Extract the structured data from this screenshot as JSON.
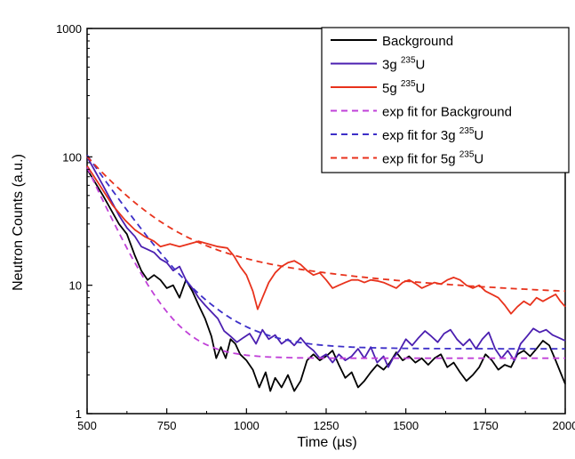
{
  "chart_data": {
    "type": "line",
    "xlabel": "Time (µs)",
    "ylabel": "Neutron Counts (a.u.)",
    "xlim": [
      500,
      2000
    ],
    "ylim": [
      1,
      1000
    ],
    "yscale": "log",
    "grid": false,
    "legend_position": "top-right",
    "x_ticks": [
      500,
      750,
      1000,
      1250,
      1500,
      1750,
      2000
    ],
    "x_tick_labels": [
      "500",
      "750",
      "1000",
      "1250",
      "1500",
      "1750",
      "2000"
    ],
    "y_ticks": [
      1,
      10,
      100,
      1000
    ],
    "y_tick_labels": [
      "1",
      "10",
      "100",
      "1000"
    ],
    "series": [
      {
        "name": "Background",
        "legend_text": "Background",
        "legend_sup": "",
        "legend_suffix": "",
        "color": "#000000",
        "style": "solid",
        "points": [
          [
            500,
            80
          ],
          [
            550,
            50
          ],
          [
            600,
            30
          ],
          [
            625,
            25
          ],
          [
            650,
            17
          ],
          [
            670,
            13
          ],
          [
            690,
            11
          ],
          [
            710,
            12
          ],
          [
            730,
            11
          ],
          [
            750,
            9.5
          ],
          [
            770,
            10
          ],
          [
            790,
            8
          ],
          [
            810,
            11
          ],
          [
            830,
            9
          ],
          [
            850,
            7
          ],
          [
            870,
            5.5
          ],
          [
            890,
            4
          ],
          [
            905,
            2.7
          ],
          [
            920,
            3.3
          ],
          [
            935,
            2.7
          ],
          [
            950,
            3.8
          ],
          [
            965,
            3.5
          ],
          [
            980,
            2.9
          ],
          [
            1000,
            2.6
          ],
          [
            1020,
            2.2
          ],
          [
            1040,
            1.6
          ],
          [
            1060,
            2.1
          ],
          [
            1075,
            1.5
          ],
          [
            1090,
            1.9
          ],
          [
            1110,
            1.6
          ],
          [
            1130,
            2.0
          ],
          [
            1150,
            1.5
          ],
          [
            1170,
            1.8
          ],
          [
            1190,
            2.6
          ],
          [
            1210,
            2.9
          ],
          [
            1230,
            2.6
          ],
          [
            1250,
            2.8
          ],
          [
            1270,
            3.1
          ],
          [
            1290,
            2.4
          ],
          [
            1310,
            1.9
          ],
          [
            1330,
            2.1
          ],
          [
            1350,
            1.6
          ],
          [
            1370,
            1.8
          ],
          [
            1390,
            2.1
          ],
          [
            1410,
            2.4
          ],
          [
            1430,
            2.2
          ],
          [
            1450,
            2.5
          ],
          [
            1470,
            3.0
          ],
          [
            1490,
            2.6
          ],
          [
            1510,
            2.8
          ],
          [
            1530,
            2.5
          ],
          [
            1550,
            2.7
          ],
          [
            1570,
            2.4
          ],
          [
            1590,
            2.7
          ],
          [
            1610,
            2.9
          ],
          [
            1630,
            2.3
          ],
          [
            1650,
            2.5
          ],
          [
            1670,
            2.1
          ],
          [
            1690,
            1.8
          ],
          [
            1710,
            2.0
          ],
          [
            1730,
            2.3
          ],
          [
            1750,
            2.9
          ],
          [
            1770,
            2.6
          ],
          [
            1790,
            2.2
          ],
          [
            1810,
            2.4
          ],
          [
            1830,
            2.3
          ],
          [
            1850,
            2.9
          ],
          [
            1870,
            3.1
          ],
          [
            1890,
            2.8
          ],
          [
            1910,
            3.2
          ],
          [
            1930,
            3.7
          ],
          [
            1950,
            3.4
          ],
          [
            1970,
            2.6
          ],
          [
            1985,
            2.1
          ],
          [
            2000,
            1.7
          ]
        ]
      },
      {
        "name": "3g 235U",
        "legend_text": "3g ",
        "legend_sup": "235",
        "legend_suffix": "U",
        "color": "#4b1fb0",
        "style": "solid",
        "points": [
          [
            500,
            100
          ],
          [
            550,
            60
          ],
          [
            600,
            35
          ],
          [
            625,
            28
          ],
          [
            650,
            24
          ],
          [
            670,
            20
          ],
          [
            690,
            19
          ],
          [
            710,
            18
          ],
          [
            730,
            16
          ],
          [
            750,
            15
          ],
          [
            770,
            13
          ],
          [
            790,
            14
          ],
          [
            810,
            11
          ],
          [
            830,
            9.5
          ],
          [
            850,
            8
          ],
          [
            870,
            7
          ],
          [
            890,
            6.2
          ],
          [
            910,
            5.5
          ],
          [
            930,
            4.4
          ],
          [
            950,
            4.0
          ],
          [
            970,
            3.6
          ],
          [
            990,
            3.9
          ],
          [
            1010,
            4.2
          ],
          [
            1030,
            3.5
          ],
          [
            1050,
            4.5
          ],
          [
            1070,
            3.8
          ],
          [
            1090,
            4.1
          ],
          [
            1110,
            3.5
          ],
          [
            1130,
            3.8
          ],
          [
            1150,
            3.4
          ],
          [
            1170,
            3.9
          ],
          [
            1190,
            3.4
          ],
          [
            1210,
            3.1
          ],
          [
            1230,
            2.7
          ],
          [
            1250,
            2.9
          ],
          [
            1270,
            2.5
          ],
          [
            1290,
            2.9
          ],
          [
            1310,
            2.6
          ],
          [
            1330,
            2.8
          ],
          [
            1350,
            3.2
          ],
          [
            1370,
            2.7
          ],
          [
            1390,
            3.3
          ],
          [
            1410,
            2.5
          ],
          [
            1430,
            2.8
          ],
          [
            1445,
            2.3
          ],
          [
            1460,
            2.7
          ],
          [
            1480,
            3.1
          ],
          [
            1500,
            3.8
          ],
          [
            1520,
            3.4
          ],
          [
            1540,
            3.9
          ],
          [
            1560,
            4.4
          ],
          [
            1580,
            4.0
          ],
          [
            1600,
            3.6
          ],
          [
            1620,
            4.2
          ],
          [
            1640,
            4.5
          ],
          [
            1660,
            3.8
          ],
          [
            1680,
            3.4
          ],
          [
            1700,
            3.8
          ],
          [
            1720,
            3.2
          ],
          [
            1740,
            3.8
          ],
          [
            1760,
            4.3
          ],
          [
            1780,
            3.2
          ],
          [
            1800,
            2.7
          ],
          [
            1820,
            3.1
          ],
          [
            1840,
            2.6
          ],
          [
            1860,
            3.5
          ],
          [
            1880,
            4.0
          ],
          [
            1900,
            4.6
          ],
          [
            1920,
            4.3
          ],
          [
            1940,
            4.5
          ],
          [
            1960,
            4.1
          ],
          [
            1980,
            3.9
          ],
          [
            2000,
            3.7
          ]
        ]
      },
      {
        "name": "5g 235U",
        "legend_text": "5g ",
        "legend_sup": "235",
        "legend_suffix": "U",
        "color": "#e8321c",
        "style": "solid",
        "points": [
          [
            500,
            85
          ],
          [
            540,
            60
          ],
          [
            580,
            42
          ],
          [
            620,
            32
          ],
          [
            650,
            27
          ],
          [
            680,
            24
          ],
          [
            710,
            22
          ],
          [
            730,
            20
          ],
          [
            760,
            21
          ],
          [
            790,
            20
          ],
          [
            820,
            21
          ],
          [
            850,
            22
          ],
          [
            880,
            21
          ],
          [
            910,
            20
          ],
          [
            940,
            19.5
          ],
          [
            960,
            17
          ],
          [
            980,
            14
          ],
          [
            1000,
            12
          ],
          [
            1020,
            9
          ],
          [
            1035,
            6.5
          ],
          [
            1050,
            8
          ],
          [
            1070,
            10.5
          ],
          [
            1090,
            12.5
          ],
          [
            1110,
            14
          ],
          [
            1130,
            15
          ],
          [
            1150,
            15.5
          ],
          [
            1170,
            14.5
          ],
          [
            1190,
            13
          ],
          [
            1210,
            12
          ],
          [
            1230,
            12.5
          ],
          [
            1250,
            11
          ],
          [
            1270,
            9.5
          ],
          [
            1290,
            10
          ],
          [
            1310,
            10.5
          ],
          [
            1330,
            11
          ],
          [
            1350,
            11
          ],
          [
            1370,
            10.5
          ],
          [
            1390,
            11
          ],
          [
            1410,
            10.8
          ],
          [
            1430,
            10.5
          ],
          [
            1450,
            10
          ],
          [
            1470,
            9.5
          ],
          [
            1490,
            10.5
          ],
          [
            1510,
            11
          ],
          [
            1530,
            10.3
          ],
          [
            1550,
            9.5
          ],
          [
            1570,
            10
          ],
          [
            1590,
            10.5
          ],
          [
            1610,
            10.2
          ],
          [
            1630,
            11
          ],
          [
            1650,
            11.5
          ],
          [
            1670,
            11
          ],
          [
            1690,
            10
          ],
          [
            1710,
            9.5
          ],
          [
            1730,
            10
          ],
          [
            1750,
            9
          ],
          [
            1770,
            8.5
          ],
          [
            1790,
            8
          ],
          [
            1810,
            7
          ],
          [
            1830,
            6
          ],
          [
            1850,
            6.8
          ],
          [
            1870,
            7.5
          ],
          [
            1890,
            7
          ],
          [
            1910,
            8
          ],
          [
            1930,
            7.5
          ],
          [
            1950,
            8
          ],
          [
            1970,
            8.5
          ],
          [
            1985,
            7.5
          ],
          [
            2000,
            6.8
          ]
        ]
      },
      {
        "name": "exp fit for Background",
        "legend_text": "exp fit for Background",
        "legend_sup": "",
        "legend_suffix": "",
        "color": "#c040d8",
        "style": "dashed",
        "fit": {
          "A": 2.7,
          "B": 80,
          "tau": 80
        }
      },
      {
        "name": "exp fit for 3g 235U",
        "legend_text": "exp fit for 3g ",
        "legend_sup": "235",
        "legend_suffix": "U",
        "color": "#3d2fc8",
        "style": "dashed",
        "fit": {
          "A": 3.2,
          "B": 100,
          "tau": 120
        }
      },
      {
        "name": "exp fit for 5g 235U",
        "legend_text": "exp fit for 5g ",
        "legend_sup": "235",
        "legend_suffix": "U",
        "color": "#e8321c",
        "style": "dashed",
        "fit": {
          "A": 7.5,
          "B": 78,
          "tau": 130,
          "A2": 15,
          "tau2": 650
        }
      }
    ]
  }
}
